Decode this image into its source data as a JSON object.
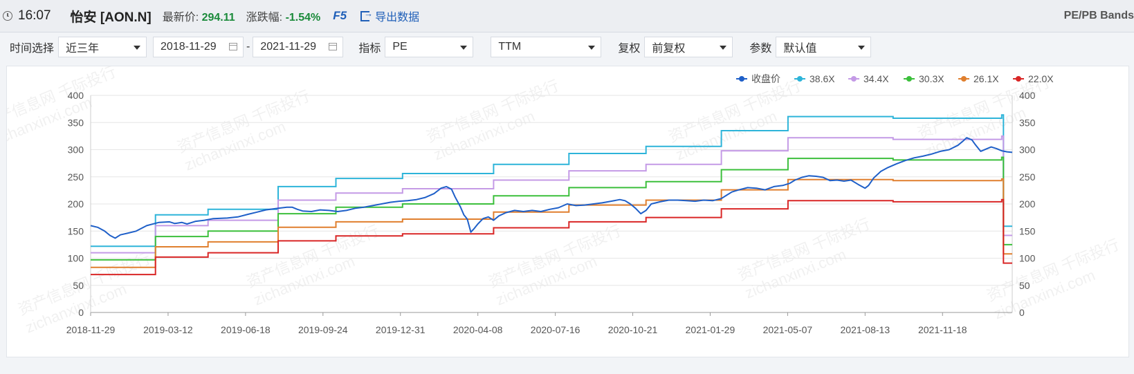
{
  "header": {
    "time": "16:07",
    "name": "怡安 [AON.N]",
    "price_label": "最新价:",
    "price": "294.11",
    "change_label": "涨跌幅:",
    "change": "-1.54%",
    "hotkey": "F5",
    "export_label": "导出数据",
    "bands_label": "PE/PB Bands"
  },
  "controls": {
    "time_label": "时间选择",
    "time_value": "近三年",
    "start_date": "2018-11-29",
    "dash": "-",
    "end_date": "2021-11-29",
    "indicator_label": "指标",
    "indicator_value": "PE",
    "ttm_value": "TTM",
    "adjust_label": "复权",
    "adjust_value": "前复权",
    "param_label": "参数",
    "param_value": "默认值"
  },
  "watermarks": [
    "资产信息网 千际投行",
    "zichanxinxi.com"
  ],
  "colors": {
    "close": "#1e5fc8",
    "b38": "#2db4d9",
    "b34": "#c49ae6",
    "b30": "#3bbf3b",
    "b26": "#e07f2e",
    "b22": "#d92626"
  },
  "chart_data": {
    "type": "line",
    "x_tick_labels": [
      "2018-11-29",
      "2019-03-12",
      "2019-06-18",
      "2019-09-24",
      "2019-12-31",
      "2020-04-08",
      "2020-07-16",
      "2020-10-21",
      "2021-01-29",
      "2021-05-07",
      "2021-08-13",
      "2021-11-18"
    ],
    "ylim": [
      0,
      400
    ],
    "y_ticks": [
      "0",
      "50",
      "100",
      "150",
      "200",
      "250",
      "300",
      "350",
      "400"
    ],
    "legend_position": "top-right",
    "grid": true,
    "legend": [
      "收盘价",
      "38.6X",
      "34.4X",
      "30.3X",
      "26.1X",
      "22.0X"
    ],
    "series": [
      {
        "name": "收盘价",
        "key": "close",
        "points": [
          [
            0,
            160
          ],
          [
            4,
            157
          ],
          [
            8,
            150
          ],
          [
            11,
            142
          ],
          [
            14,
            137
          ],
          [
            17,
            143
          ],
          [
            21,
            146
          ],
          [
            26,
            150
          ],
          [
            32,
            160
          ],
          [
            39,
            166
          ],
          [
            45,
            167
          ],
          [
            48,
            164
          ],
          [
            52,
            166
          ],
          [
            55,
            163
          ],
          [
            60,
            168
          ],
          [
            65,
            170
          ],
          [
            70,
            173
          ],
          [
            78,
            174
          ],
          [
            84,
            176
          ],
          [
            90,
            181
          ],
          [
            95,
            185
          ],
          [
            100,
            189
          ],
          [
            107,
            192
          ],
          [
            112,
            194
          ],
          [
            115,
            194
          ],
          [
            118,
            190
          ],
          [
            121,
            187
          ],
          [
            126,
            186
          ],
          [
            131,
            189
          ],
          [
            136,
            188
          ],
          [
            141,
            186
          ],
          [
            146,
            188
          ],
          [
            151,
            192
          ],
          [
            156,
            194
          ],
          [
            161,
            197
          ],
          [
            166,
            200
          ],
          [
            171,
            203
          ],
          [
            176,
            205
          ],
          [
            181,
            206
          ],
          [
            186,
            208
          ],
          [
            191,
            212
          ],
          [
            196,
            219
          ],
          [
            200,
            229
          ],
          [
            203,
            232
          ],
          [
            206,
            227
          ],
          [
            208,
            213
          ],
          [
            211,
            195
          ],
          [
            213,
            180
          ],
          [
            215,
            172
          ],
          [
            217,
            148
          ],
          [
            219,
            155
          ],
          [
            221,
            163
          ],
          [
            224,
            173
          ],
          [
            227,
            176
          ],
          [
            230,
            170
          ],
          [
            233,
            178
          ],
          [
            237,
            184
          ],
          [
            242,
            188
          ],
          [
            247,
            186
          ],
          [
            252,
            188
          ],
          [
            257,
            186
          ],
          [
            262,
            190
          ],
          [
            267,
            193
          ],
          [
            272,
            200
          ],
          [
            277,
            197
          ],
          [
            282,
            198
          ],
          [
            287,
            200
          ],
          [
            292,
            202
          ],
          [
            297,
            205
          ],
          [
            302,
            208
          ],
          [
            305,
            206
          ],
          [
            308,
            200
          ],
          [
            311,
            192
          ],
          [
            314,
            182
          ],
          [
            317,
            188
          ],
          [
            320,
            200
          ],
          [
            325,
            204
          ],
          [
            330,
            207
          ],
          [
            335,
            207
          ],
          [
            340,
            206
          ],
          [
            345,
            205
          ],
          [
            350,
            207
          ],
          [
            355,
            206
          ],
          [
            360,
            210
          ],
          [
            363,
            216
          ],
          [
            366,
            222
          ],
          [
            370,
            226
          ],
          [
            375,
            230
          ],
          [
            380,
            229
          ],
          [
            385,
            226
          ],
          [
            390,
            232
          ],
          [
            395,
            234
          ],
          [
            399,
            238
          ],
          [
            402,
            244
          ],
          [
            406,
            249
          ],
          [
            410,
            252
          ],
          [
            414,
            251
          ],
          [
            418,
            249
          ],
          [
            422,
            243
          ],
          [
            426,
            244
          ],
          [
            430,
            242
          ],
          [
            434,
            244
          ],
          [
            438,
            236
          ],
          [
            442,
            229
          ],
          [
            444,
            234
          ],
          [
            447,
            248
          ],
          [
            451,
            260
          ],
          [
            455,
            267
          ],
          [
            460,
            274
          ],
          [
            465,
            280
          ],
          [
            470,
            285
          ],
          [
            475,
            288
          ],
          [
            480,
            292
          ],
          [
            485,
            297
          ],
          [
            490,
            300
          ],
          [
            495,
            308
          ],
          [
            498,
            316
          ],
          [
            500,
            322
          ],
          [
            503,
            318
          ],
          [
            505,
            309
          ],
          [
            508,
            297
          ],
          [
            511,
            301
          ],
          [
            514,
            305
          ],
          [
            517,
            302
          ],
          [
            520,
            298
          ],
          [
            523,
            296
          ],
          [
            526,
            295
          ]
        ]
      },
      {
        "name": "38.6X",
        "key": "b38",
        "segments": [
          [
            0,
            37,
            122
          ],
          [
            37,
            67,
            180
          ],
          [
            67,
            107,
            190
          ],
          [
            107,
            140,
            232
          ],
          [
            140,
            178,
            247
          ],
          [
            178,
            230,
            256
          ],
          [
            230,
            273,
            273
          ],
          [
            273,
            317,
            293
          ],
          [
            317,
            360,
            306
          ],
          [
            360,
            398,
            335
          ],
          [
            398,
            458,
            361
          ],
          [
            458,
            520,
            358
          ],
          [
            520,
            521,
            364
          ],
          [
            521,
            526,
            159
          ]
        ]
      },
      {
        "name": "34.4X",
        "key": "b34",
        "segments": [
          [
            0,
            37,
            110
          ],
          [
            37,
            67,
            160
          ],
          [
            67,
            107,
            170
          ],
          [
            107,
            140,
            207
          ],
          [
            140,
            178,
            220
          ],
          [
            178,
            230,
            228
          ],
          [
            230,
            273,
            244
          ],
          [
            273,
            317,
            261
          ],
          [
            317,
            360,
            273
          ],
          [
            360,
            398,
            298
          ],
          [
            398,
            458,
            322
          ],
          [
            458,
            520,
            319
          ],
          [
            520,
            521,
            325
          ],
          [
            521,
            526,
            142
          ]
        ]
      },
      {
        "name": "30.3X",
        "key": "b30",
        "segments": [
          [
            0,
            37,
            97
          ],
          [
            37,
            67,
            140
          ],
          [
            67,
            107,
            150
          ],
          [
            107,
            140,
            182
          ],
          [
            140,
            178,
            194
          ],
          [
            178,
            230,
            200
          ],
          [
            230,
            273,
            215
          ],
          [
            273,
            317,
            230
          ],
          [
            317,
            360,
            241
          ],
          [
            360,
            398,
            263
          ],
          [
            398,
            458,
            284
          ],
          [
            458,
            520,
            281
          ],
          [
            520,
            521,
            286
          ],
          [
            521,
            526,
            125
          ]
        ]
      },
      {
        "name": "26.1X",
        "key": "b26",
        "segments": [
          [
            0,
            37,
            83
          ],
          [
            37,
            67,
            121
          ],
          [
            67,
            107,
            130
          ],
          [
            107,
            140,
            157
          ],
          [
            140,
            178,
            167
          ],
          [
            178,
            230,
            172
          ],
          [
            230,
            273,
            185
          ],
          [
            273,
            317,
            198
          ],
          [
            317,
            360,
            207
          ],
          [
            360,
            398,
            226
          ],
          [
            398,
            458,
            245
          ],
          [
            458,
            520,
            243
          ],
          [
            520,
            521,
            246
          ],
          [
            521,
            526,
            108
          ]
        ]
      },
      {
        "name": "22.0X",
        "key": "b22",
        "segments": [
          [
            0,
            37,
            70
          ],
          [
            37,
            67,
            102
          ],
          [
            67,
            107,
            110
          ],
          [
            107,
            140,
            132
          ],
          [
            140,
            178,
            141
          ],
          [
            178,
            230,
            145
          ],
          [
            230,
            273,
            156
          ],
          [
            273,
            317,
            167
          ],
          [
            317,
            360,
            175
          ],
          [
            360,
            398,
            191
          ],
          [
            398,
            458,
            206
          ],
          [
            458,
            520,
            204
          ],
          [
            520,
            521,
            208
          ],
          [
            521,
            526,
            91
          ]
        ]
      }
    ]
  }
}
